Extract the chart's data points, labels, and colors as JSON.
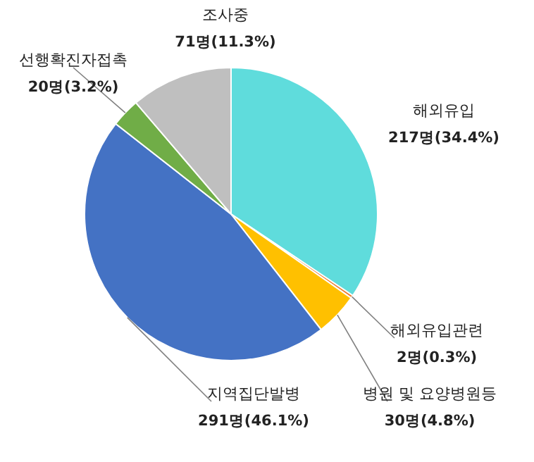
{
  "chart_data": {
    "type": "pie",
    "categories": [
      "해외유입",
      "해외유입관련",
      "병원 및 요양병원등",
      "지역집단발병",
      "선행확진자접촉",
      "조사중"
    ],
    "values": [
      217,
      2,
      30,
      291,
      20,
      71
    ],
    "value_labels": [
      "217명(34.4%)",
      "2명(0.3%)",
      "30명(4.8%)",
      "291명(46.1%)",
      "20명(3.2%)",
      "71명(11.3%)"
    ],
    "colors": [
      "#5fdcdc",
      "#ed7d31",
      "#ffc000",
      "#4472c4",
      "#70ad47",
      "#bfbfbf"
    ],
    "legend": false
  }
}
